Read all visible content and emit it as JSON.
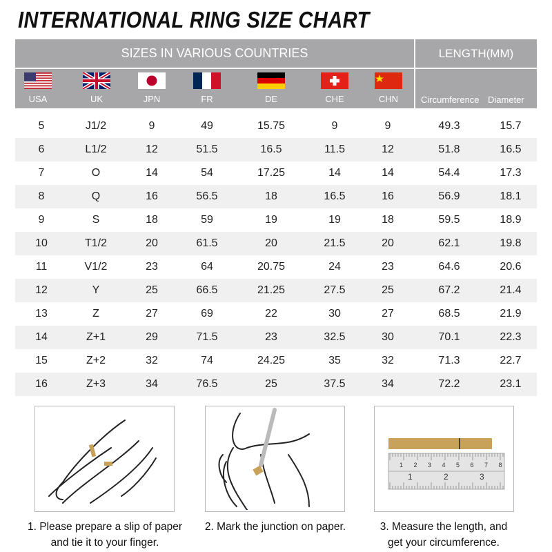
{
  "title": "INTERNATIONAL RING SIZE CHART",
  "header": {
    "sizes_label": "SIZES IN VARIOUS COUNTRIES",
    "length_label": "LENGTH(MM)",
    "countries": [
      {
        "code": "USA",
        "flag": "usa-flag"
      },
      {
        "code": "UK",
        "flag": "uk-flag"
      },
      {
        "code": "JPN",
        "flag": "japan-flag"
      },
      {
        "code": "FR",
        "flag": "france-flag"
      },
      {
        "code": "DE",
        "flag": "germany-flag"
      },
      {
        "code": "CHE",
        "flag": "switzerland-flag"
      },
      {
        "code": "CHN",
        "flag": "china-flag"
      }
    ],
    "circumference": "Circumference",
    "diameter": "Diameter"
  },
  "rows": [
    [
      "5",
      "J1/2",
      "9",
      "49",
      "15.75",
      "9",
      "9",
      "49.3",
      "15.7"
    ],
    [
      "6",
      "L1/2",
      "12",
      "51.5",
      "16.5",
      "11.5",
      "12",
      "51.8",
      "16.5"
    ],
    [
      "7",
      "O",
      "14",
      "54",
      "17.25",
      "14",
      "14",
      "54.4",
      "17.3"
    ],
    [
      "8",
      "Q",
      "16",
      "56.5",
      "18",
      "16.5",
      "16",
      "56.9",
      "18.1"
    ],
    [
      "9",
      "S",
      "18",
      "59",
      "19",
      "19",
      "18",
      "59.5",
      "18.9"
    ],
    [
      "10",
      "T1/2",
      "20",
      "61.5",
      "20",
      "21.5",
      "20",
      "62.1",
      "19.8"
    ],
    [
      "11",
      "V1/2",
      "23",
      "64",
      "20.75",
      "24",
      "23",
      "64.6",
      "20.6"
    ],
    [
      "12",
      "Y",
      "25",
      "66.5",
      "21.25",
      "27.5",
      "25",
      "67.2",
      "21.4"
    ],
    [
      "13",
      "Z",
      "27",
      "69",
      "22",
      "30",
      "27",
      "68.5",
      "21.9"
    ],
    [
      "14",
      "Z+1",
      "29",
      "71.5",
      "23",
      "32.5",
      "30",
      "70.1",
      "22.3"
    ],
    [
      "15",
      "Z+2",
      "32",
      "74",
      "24.25",
      "35",
      "32",
      "71.3",
      "22.7"
    ],
    [
      "16",
      "Z+3",
      "34",
      "76.5",
      "25",
      "37.5",
      "34",
      "72.2",
      "23.1"
    ]
  ],
  "steps": [
    {
      "line1": "1. Please prepare a slip of paper",
      "line2": "and tie it to your finger."
    },
    {
      "line1": "2. Mark the junction on paper.",
      "line2": ""
    },
    {
      "line1": "3. Measure the length, and",
      "line2": "get your circumference."
    }
  ],
  "ruler": {
    "cm_marks": [
      "1",
      "2",
      "3",
      "4",
      "5",
      "6",
      "7",
      "8"
    ],
    "inch_marks": [
      "1",
      "2",
      "3"
    ]
  },
  "colors": {
    "header_bg": "#a7a7a9",
    "stripe": "#f0f0f0",
    "paper": "#c9a25a"
  }
}
